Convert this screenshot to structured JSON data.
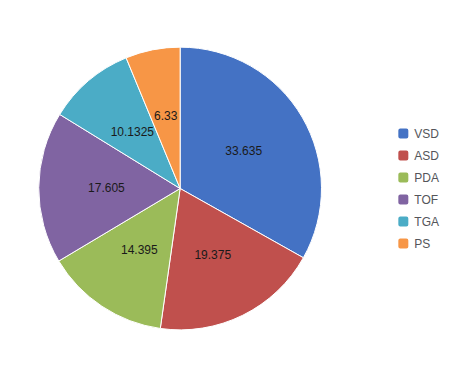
{
  "chart_data": {
    "type": "pie",
    "categories": [
      "VSD",
      "ASD",
      "PDA",
      "TOF",
      "TGA",
      "PS"
    ],
    "values": [
      33.635,
      19.375,
      14.395,
      17.605,
      10.1325,
      6.33
    ],
    "colors": [
      "#4472C4",
      "#C0504D",
      "#9BBB59",
      "#8064A2",
      "#4BACC6",
      "#F79646"
    ],
    "data_labels": true,
    "legend": "right"
  }
}
